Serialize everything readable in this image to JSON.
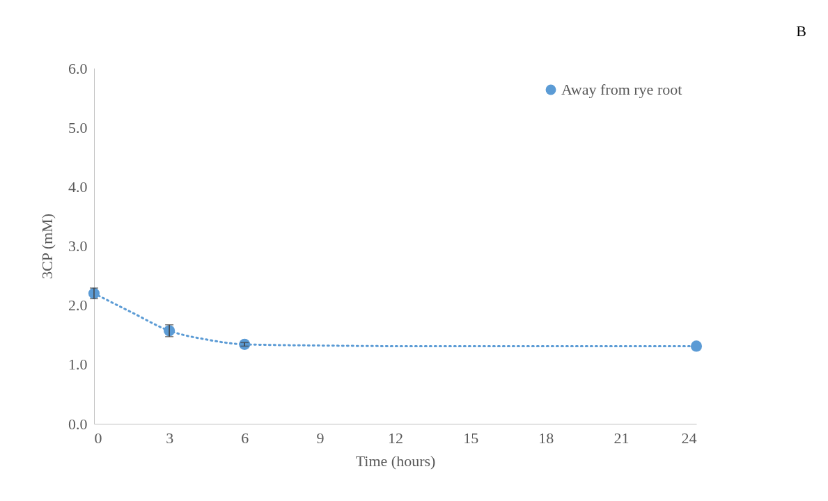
{
  "chart_data": {
    "type": "scatter",
    "title": "B",
    "xlabel": "Time  (hours)",
    "ylabel": "3CP (mM)",
    "xlim": [
      0,
      24
    ],
    "xticks": [
      0,
      3,
      6,
      9,
      12,
      15,
      18,
      21,
      24
    ],
    "ylim": [
      0,
      6
    ],
    "yticks": [
      {
        "value": 0,
        "label": "0.0"
      },
      {
        "value": 1,
        "label": "1.0"
      },
      {
        "value": 2,
        "label": "2.0"
      },
      {
        "value": 3,
        "label": "3.0"
      },
      {
        "value": 4,
        "label": "4.0"
      },
      {
        "value": 5,
        "label": "5.0"
      },
      {
        "value": 6,
        "label": "6.0"
      }
    ],
    "grid": false,
    "legend": "top right",
    "marker": "circle",
    "series": [
      {
        "name": "Away from rye root",
        "color": "#5b9bd5",
        "x": [
          0,
          3,
          6,
          24
        ],
        "values": [
          2.2,
          1.57,
          1.34,
          1.31
        ],
        "errors": [
          0.09,
          0.1,
          0.03,
          null
        ]
      },
      {
        "type": "line",
        "color": "#5b9bd5",
        "line_style": "dotted",
        "marker": "none",
        "x": [
          0,
          1.5,
          3,
          4.5,
          6,
          9,
          12,
          15,
          18,
          21,
          24
        ],
        "values": [
          2.2,
          1.88,
          1.57,
          1.42,
          1.34,
          1.32,
          1.31,
          1.31,
          1.31,
          1.31,
          1.31
        ]
      }
    ]
  }
}
